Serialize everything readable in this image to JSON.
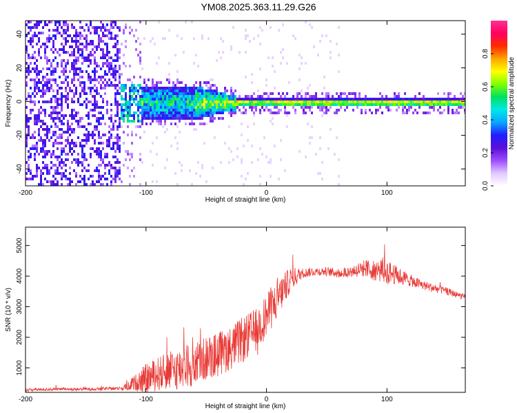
{
  "title": "YM08.2025.363.11.29.G26",
  "colors": {
    "snr_line": "#e83a36",
    "axis": "#000000",
    "colorbar_scale": [
      "#ffffff",
      "#e2c7ff",
      "#9b4cff",
      "#5a0fd9",
      "#1f1fff",
      "#0aa6ff",
      "#00e8e8",
      "#00e060",
      "#7fff00",
      "#ffff00",
      "#ffa500",
      "#ff2a00",
      "#ff0060",
      "#ff3090"
    ]
  },
  "chart_data": [
    {
      "type": "heatmap",
      "xlabel": "Height of straight line (km)",
      "ylabel": "Frequency (Hz)",
      "xlim": [
        -200,
        165
      ],
      "ylim": [
        -50,
        48
      ],
      "x_ticks": [
        -200,
        -100,
        0,
        100
      ],
      "y_ticks": [
        -40,
        -20,
        0,
        20,
        40
      ],
      "colorbar": {
        "label": "Normalized spectral amplitude",
        "range": [
          0.0,
          1.0
        ],
        "ticks": [
          0.0,
          0.2,
          0.4,
          0.6,
          0.8
        ]
      },
      "description_regions": [
        {
          "x_range": [
            -200,
            -122
          ],
          "freq_range": [
            -50,
            48
          ],
          "level": 0.1,
          "pattern": "diffuse noise"
        },
        {
          "x_range": [
            -120,
            -60
          ],
          "freq_range": [
            -10,
            10
          ],
          "level": 0.45,
          "pattern": "broad signal"
        },
        {
          "x_range": [
            -60,
            -25
          ],
          "freq_range": [
            -5,
            5
          ],
          "level": 0.6,
          "pattern": "narrowing signal"
        },
        {
          "x_range": [
            -25,
            165
          ],
          "freq_range": [
            -2,
            2
          ],
          "level": 0.85,
          "pattern": "narrow carrier"
        }
      ]
    },
    {
      "type": "line",
      "xlabel": "Height of straight line (km)",
      "ylabel": "SNR (10 * v/v)",
      "xlim": [
        -200,
        165
      ],
      "ylim": [
        200,
        5600
      ],
      "x_ticks": [
        -200,
        -100,
        0,
        100
      ],
      "y_ticks": [
        1000,
        2000,
        3000,
        4000,
        5000
      ],
      "series": [
        {
          "x": [
            -200,
            -180,
            -160,
            -140,
            -120,
            -110,
            -100,
            -90,
            -80,
            -70,
            -60,
            -50,
            -40,
            -30,
            -20,
            -10,
            0,
            10,
            20,
            30,
            40,
            50,
            60,
            70,
            80,
            90,
            100,
            110,
            120,
            130,
            140,
            150,
            165
          ],
          "y": [
            280,
            300,
            300,
            310,
            330,
            500,
            650,
            800,
            900,
            1000,
            1150,
            1300,
            1450,
            1650,
            1900,
            2200,
            2700,
            3300,
            3900,
            4100,
            4150,
            4150,
            4100,
            4150,
            4250,
            4200,
            4150,
            4000,
            3850,
            3700,
            3600,
            3500,
            3300
          ],
          "noise_amp": [
            60,
            60,
            60,
            60,
            80,
            300,
            600,
            700,
            800,
            900,
            900,
            900,
            950,
            900,
            950,
            900,
            900,
            800,
            500,
            200,
            180,
            180,
            200,
            250,
            350,
            450,
            500,
            350,
            250,
            200,
            180,
            150,
            120
          ]
        }
      ]
    }
  ]
}
